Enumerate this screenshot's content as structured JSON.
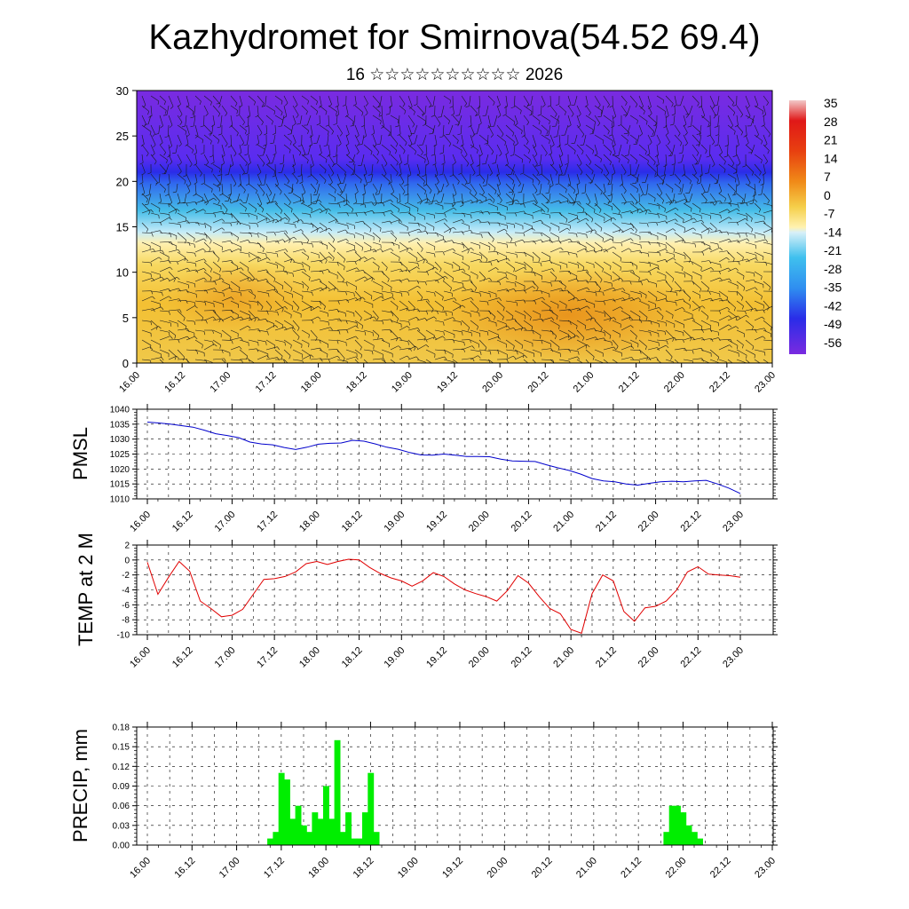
{
  "title": "Kazhydromet for Smirnova(54.52 69.4)",
  "subtitle": "16 ☆☆☆☆☆☆☆☆☆☆ 2026",
  "chart_data": [
    {
      "type": "heatmap",
      "description_units": "vertical cross-section (altitude levels) with wind barbs",
      "x_ticks": [
        "16.00",
        "16.12",
        "17.00",
        "17.12",
        "18.00",
        "18.12",
        "19.00",
        "19.12",
        "20.00",
        "20.12",
        "21.00",
        "21.12",
        "22.00",
        "22.12",
        "23.00"
      ],
      "y_ticks": [
        "0",
        "5",
        "10",
        "15",
        "20",
        "25",
        "30"
      ],
      "ylim": [
        0,
        30
      ],
      "colorbar_labels": [
        "35",
        "28",
        "21",
        "14",
        "7",
        "0",
        "-7",
        "-14",
        "-21",
        "-28",
        "-35",
        "-42",
        "-49",
        "-56"
      ],
      "colors": {
        "cold": "#7a2be0",
        "cool": "#2f5cf0",
        "mild": "#9fe0f5",
        "warm": "#f5cf4a",
        "hot": "#e8901a"
      }
    },
    {
      "type": "line",
      "ylabel": "PMSL",
      "y_ticks": [
        "1040",
        "1035",
        "1030",
        "1025",
        "1020",
        "1015",
        "1010"
      ],
      "ylim": [
        1010,
        1040
      ],
      "x_ticks": [
        "16.00",
        "16.12",
        "17.00",
        "17.12",
        "18.00",
        "18.12",
        "19.00",
        "19.12",
        "20.00",
        "20.12",
        "21.00",
        "21.12",
        "22.00",
        "22.12",
        "23.00"
      ],
      "line_color": "#0000cc",
      "series": [
        {
          "values": [
            1035.7,
            1035.4,
            1035.0,
            1034.5,
            1034.0,
            1033.0,
            1031.8,
            1031.2,
            1030.5,
            1029.0,
            1028.4,
            1028.1,
            1027.2,
            1026.5,
            1027.3,
            1028.3,
            1028.6,
            1028.7,
            1029.6,
            1029.3,
            1028.4,
            1027.3,
            1026.6,
            1025.5,
            1024.7,
            1024.6,
            1025.0,
            1024.6,
            1024.2,
            1024.2,
            1024.1,
            1023.3,
            1022.7,
            1022.6,
            1022.5,
            1021.4,
            1020.4,
            1019.5,
            1018.3,
            1016.8,
            1016.0,
            1015.7,
            1015.0,
            1014.6,
            1015.2,
            1015.7,
            1015.9,
            1015.7,
            1016.0,
            1016.2,
            1015.0,
            1013.6,
            1011.8
          ]
        }
      ]
    },
    {
      "type": "line",
      "ylabel": "TEMP at 2 M",
      "y_ticks": [
        "2",
        "0",
        "-2",
        "-4",
        "-6",
        "-8",
        "-10"
      ],
      "ylim": [
        -10,
        2
      ],
      "x_ticks": [
        "16.00",
        "16.12",
        "17.00",
        "17.12",
        "18.00",
        "18.12",
        "19.00",
        "19.12",
        "20.00",
        "20.12",
        "21.00",
        "21.12",
        "22.00",
        "22.12",
        "23.00"
      ],
      "line_color": "#e00000",
      "series": [
        {
          "values": [
            -0.3,
            -4.6,
            -2.3,
            -0.2,
            -1.5,
            -5.5,
            -6.5,
            -7.6,
            -7.4,
            -6.6,
            -4.6,
            -2.6,
            -2.5,
            -2.2,
            -1.6,
            -0.5,
            -0.2,
            -0.6,
            -0.2,
            0.1,
            0.0,
            -1.0,
            -1.8,
            -2.4,
            -2.8,
            -3.5,
            -2.8,
            -1.7,
            -2.2,
            -3.2,
            -4.0,
            -4.5,
            -4.9,
            -5.5,
            -4.1,
            -2.1,
            -3.1,
            -4.9,
            -6.5,
            -7.2,
            -9.3,
            -9.8,
            -4.5,
            -2.0,
            -2.8,
            -6.9,
            -8.2,
            -6.4,
            -6.2,
            -5.5,
            -4.0,
            -1.6,
            -0.9,
            -1.9,
            -2.0,
            -2.1,
            -2.3
          ]
        }
      ]
    },
    {
      "type": "bar",
      "ylabel": "PRECIP, mm",
      "y_ticks": [
        "0.18",
        "0.15",
        "0.12",
        "0.09",
        "0.06",
        "0.03",
        "0.00"
      ],
      "ylim": [
        0,
        0.18
      ],
      "x_ticks": [
        "16.00",
        "16.12",
        "17.00",
        "17.12",
        "18.00",
        "18.12",
        "19.00",
        "19.12",
        "20.00",
        "20.12",
        "21.00",
        "21.12",
        "22.00",
        "22.12",
        "23.00"
      ],
      "bar_color": "#00ee00",
      "bars": [
        {
          "x": 11.0,
          "value": 0.01
        },
        {
          "x": 11.5,
          "value": 0.02
        },
        {
          "x": 12.0,
          "value": 0.11
        },
        {
          "x": 12.5,
          "value": 0.1
        },
        {
          "x": 13.0,
          "value": 0.04
        },
        {
          "x": 13.5,
          "value": 0.06
        },
        {
          "x": 14.0,
          "value": 0.03
        },
        {
          "x": 14.5,
          "value": 0.02
        },
        {
          "x": 15.0,
          "value": 0.05
        },
        {
          "x": 15.5,
          "value": 0.04
        },
        {
          "x": 16.0,
          "value": 0.09
        },
        {
          "x": 16.5,
          "value": 0.04
        },
        {
          "x": 17.0,
          "value": 0.16
        },
        {
          "x": 17.5,
          "value": 0.02
        },
        {
          "x": 18.0,
          "value": 0.05
        },
        {
          "x": 18.5,
          "value": 0.01
        },
        {
          "x": 19.0,
          "value": 0.01
        },
        {
          "x": 19.5,
          "value": 0.05
        },
        {
          "x": 20.0,
          "value": 0.11
        },
        {
          "x": 20.5,
          "value": 0.02
        },
        {
          "x": 46.5,
          "value": 0.02
        },
        {
          "x": 47.0,
          "value": 0.06
        },
        {
          "x": 47.5,
          "value": 0.06
        },
        {
          "x": 48.0,
          "value": 0.05
        },
        {
          "x": 48.5,
          "value": 0.03
        },
        {
          "x": 49.0,
          "value": 0.02
        },
        {
          "x": 49.5,
          "value": 0.01
        }
      ]
    }
  ]
}
